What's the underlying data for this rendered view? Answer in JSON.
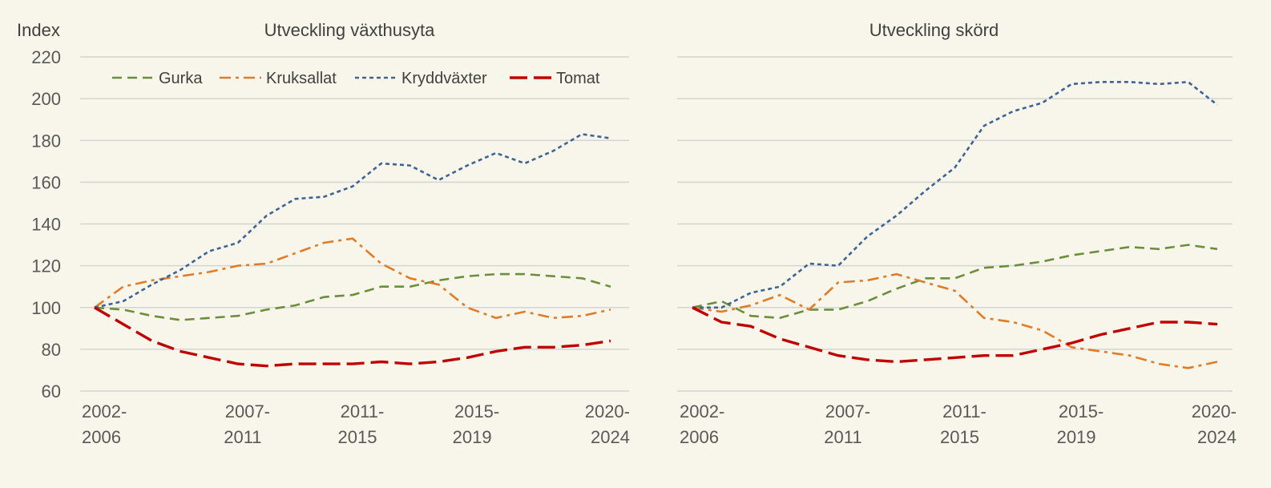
{
  "chart_data": [
    {
      "type": "line",
      "title": "Utveckling växthusyta",
      "ylabel": "Index",
      "ylim": [
        60,
        220
      ],
      "yticks": [
        60,
        80,
        100,
        120,
        140,
        160,
        180,
        200,
        220
      ],
      "grid": true,
      "legend": "top-left",
      "x_tick_labels": [
        {
          "i": 0,
          "line1": "2002-",
          "line2": "2006"
        },
        {
          "i": 5,
          "line1": "2007-",
          "line2": "2011"
        },
        {
          "i": 9,
          "line1": "2011-",
          "line2": "2015"
        },
        {
          "i": 13,
          "line1": "2015-",
          "line2": "2019"
        },
        {
          "i": 18,
          "line1": "2020-",
          "line2": "2024"
        }
      ],
      "series": [
        {
          "name": "Gurka",
          "color": "#6b8e3a",
          "dash": "dash",
          "values": [
            100,
            99,
            96,
            94,
            95,
            96,
            99,
            101,
            105,
            106,
            110,
            110,
            113,
            115,
            116,
            116,
            115,
            114,
            110
          ]
        },
        {
          "name": "Kruksallat",
          "color": "#e07b28",
          "dash": "dashdot",
          "values": [
            100,
            110,
            113,
            115,
            117,
            120,
            121,
            126,
            131,
            133,
            121,
            114,
            111,
            100,
            95,
            98,
            95,
            96,
            99
          ]
        },
        {
          "name": "Kryddväxter",
          "color": "#3e6496",
          "dash": "dot",
          "values": [
            100,
            103,
            111,
            118,
            127,
            131,
            144,
            152,
            153,
            158,
            169,
            168,
            161,
            168,
            174,
            169,
            175,
            183,
            181
          ]
        },
        {
          "name": "Tomat",
          "color": "#c00000",
          "dash": "longdash",
          "values": [
            100,
            92,
            84,
            79,
            76,
            73,
            72,
            73,
            73,
            73,
            74,
            73,
            74,
            76,
            79,
            81,
            81,
            82,
            84
          ]
        }
      ]
    },
    {
      "type": "line",
      "title": "Utveckling skörd",
      "ylim": [
        60,
        220
      ],
      "grid": true,
      "x_tick_labels": [
        {
          "i": 0,
          "line1": "2002-",
          "line2": "2006"
        },
        {
          "i": 5,
          "line1": "2007-",
          "line2": "2011"
        },
        {
          "i": 9,
          "line1": "2011-",
          "line2": "2015"
        },
        {
          "i": 13,
          "line1": "2015-",
          "line2": "2019"
        },
        {
          "i": 18,
          "line1": "2020-",
          "line2": "2024"
        }
      ],
      "series": [
        {
          "name": "Gurka",
          "color": "#6b8e3a",
          "dash": "dash",
          "values": [
            100,
            103,
            96,
            95,
            99,
            99,
            103,
            109,
            114,
            114,
            119,
            120,
            122,
            125,
            127,
            129,
            128,
            130,
            128
          ]
        },
        {
          "name": "Kruksallat",
          "color": "#e07b28",
          "dash": "dashdot",
          "values": [
            100,
            98,
            101,
            106,
            99,
            112,
            113,
            116,
            112,
            108,
            95,
            93,
            89,
            81,
            79,
            77,
            73,
            71,
            74
          ]
        },
        {
          "name": "Kryddväxter",
          "color": "#3e6496",
          "dash": "dot",
          "values": [
            100,
            100,
            107,
            110,
            121,
            120,
            134,
            144,
            156,
            167,
            187,
            194,
            198,
            207,
            208,
            208,
            207,
            208,
            197
          ]
        },
        {
          "name": "Tomat",
          "color": "#c00000",
          "dash": "longdash",
          "values": [
            100,
            93,
            91,
            85,
            81,
            77,
            75,
            74,
            75,
            76,
            77,
            77,
            80,
            83,
            87,
            90,
            93,
            93,
            92
          ]
        }
      ]
    }
  ]
}
